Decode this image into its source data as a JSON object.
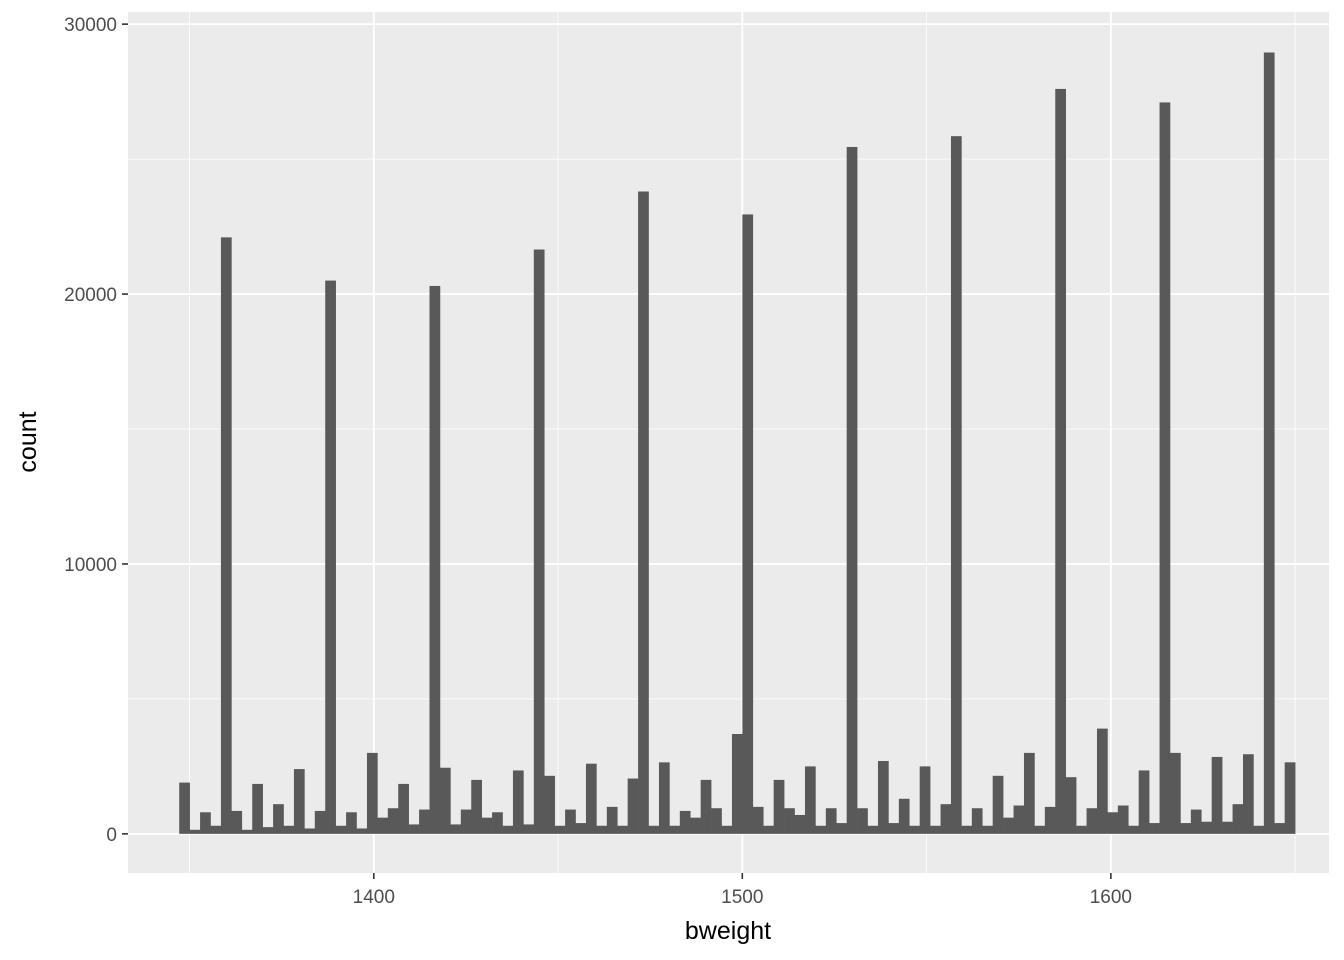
{
  "chart_data": {
    "type": "bar",
    "subtype": "histogram",
    "title": "",
    "xlabel": "bweight",
    "ylabel": "count",
    "xlim": [
      1333.3,
      1659.2
    ],
    "ylim": [
      -1450,
      30450
    ],
    "x_major_ticks": [
      1400,
      1500,
      1600
    ],
    "x_minor_ticks": [
      1350,
      1450,
      1550,
      1650
    ],
    "y_major_ticks": [
      0,
      10000,
      20000,
      30000
    ],
    "y_minor_ticks": [
      5000,
      15000,
      25000
    ],
    "x_tick_labels": [
      "1400",
      "1500",
      "1600"
    ],
    "y_tick_labels": [
      "0",
      "10000",
      "20000",
      "30000"
    ],
    "bin_start": 1347.2,
    "binwidth": 2.83,
    "counts": [
      1900,
      150,
      800,
      300,
      22100,
      850,
      150,
      1850,
      250,
      1100,
      300,
      2400,
      200,
      850,
      20500,
      300,
      800,
      200,
      3000,
      600,
      950,
      1850,
      350,
      900,
      20300,
      2450,
      350,
      900,
      2000,
      600,
      800,
      300,
      2350,
      350,
      21650,
      2150,
      300,
      900,
      400,
      2600,
      300,
      1000,
      300,
      2050,
      23800,
      300,
      2650,
      300,
      850,
      600,
      2000,
      950,
      300,
      3700,
      22950,
      1000,
      300,
      2000,
      950,
      700,
      2500,
      300,
      950,
      400,
      25450,
      950,
      300,
      2700,
      400,
      1300,
      300,
      2500,
      300,
      1100,
      25850,
      300,
      950,
      300,
      2150,
      600,
      1050,
      3000,
      300,
      1000,
      27600,
      2100,
      300,
      950,
      3900,
      800,
      1050,
      300,
      2350,
      400,
      27100,
      3000,
      400,
      900,
      450,
      2850,
      450,
      1100,
      2950,
      300,
      28950,
      400,
      2650
    ],
    "bar_color": "#595959",
    "panel_background": "#ebebeb",
    "grid_color": "#ffffff",
    "grid": true,
    "legend": "none"
  }
}
